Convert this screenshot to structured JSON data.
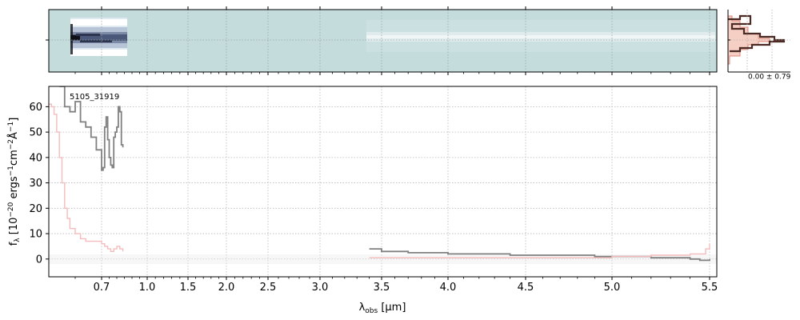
{
  "chart_data": [
    {
      "type": "image",
      "panel": "2D spectrum",
      "description_colors": {
        "background": "#c4dcdc",
        "dark": "#1a1a2e",
        "light": "#ffffff",
        "mid": "#8a97b0"
      },
      "grid": true
    },
    {
      "type": "histogram",
      "panel": "cross-dispersion profile",
      "annotation": "0.00 ± 0.79",
      "colors": {
        "fill": "#f6cfc4",
        "edge": "#e08a78",
        "dark": "#4a2a22"
      }
    },
    {
      "type": "line",
      "panel": "1D spectrum",
      "label": "5105_31919",
      "xlabel": "λ_obs [μm]",
      "ylabel": "f_λ [10^−20 ergs^−1cm^−2Å^−1]",
      "xlim": [
        0.6,
        5.52
      ],
      "ylim": [
        -7,
        68
      ],
      "x_scale": "nonlinear (compressed at short wavelengths)",
      "xticks": [
        "0.7",
        "1.0",
        "1.5",
        "2.0",
        "2.5",
        "3.0",
        "3.5",
        "4.0",
        "4.5",
        "5.0",
        "5.5"
      ],
      "yticks": [
        "0",
        "10",
        "20",
        "30",
        "40",
        "50",
        "60"
      ],
      "grid": true,
      "series": [
        {
          "color": "#808080",
          "x": [
            0.62,
            0.63,
            0.64,
            0.65,
            0.66,
            0.67,
            0.68,
            0.69,
            0.7,
            0.71,
            0.72,
            0.73,
            0.74,
            0.75,
            0.76,
            0.77,
            0.78,
            0.79,
            0.8,
            0.81,
            0.82,
            0.83,
            0.84,
            3.4,
            3.5,
            3.6,
            3.7,
            3.8,
            3.9,
            4.0,
            4.1,
            4.2,
            4.3,
            4.4,
            4.5,
            4.6,
            4.7,
            4.8,
            4.9,
            5.0,
            5.1,
            5.2,
            5.3,
            5.4,
            5.45,
            5.5
          ],
          "values": [
            68,
            60,
            58,
            62,
            54,
            52,
            48,
            43,
            35,
            36,
            52,
            56,
            47,
            40,
            37,
            36,
            48,
            50,
            52,
            60,
            58,
            45,
            44,
            4,
            3,
            3,
            2.5,
            2.5,
            2.5,
            2,
            2,
            2,
            2,
            1.5,
            1.5,
            1.5,
            1.5,
            1.5,
            1,
            1,
            1,
            0.5,
            0.5,
            0,
            -0.5,
            0
          ]
        },
        {
          "color": "#f4bcbc",
          "x": [
            0.6,
            0.605,
            0.61,
            0.615,
            0.62,
            0.625,
            0.63,
            0.635,
            0.64,
            0.65,
            0.66,
            0.67,
            0.68,
            0.7,
            0.72,
            0.74,
            0.76,
            0.78,
            0.8,
            0.82,
            0.84,
            3.4,
            3.6,
            3.8,
            4.0,
            4.2,
            4.4,
            4.6,
            4.8,
            5.0,
            5.2,
            5.4,
            5.48,
            5.5
          ],
          "values": [
            61,
            60,
            57,
            50,
            40,
            30,
            20,
            16,
            12,
            10,
            8,
            7,
            7,
            6,
            5,
            4,
            3,
            4,
            5,
            4,
            3,
            0.5,
            0.5,
            0.5,
            0.5,
            0.5,
            0.5,
            0.5,
            0.5,
            1,
            1.5,
            2,
            4,
            6
          ]
        }
      ]
    }
  ]
}
